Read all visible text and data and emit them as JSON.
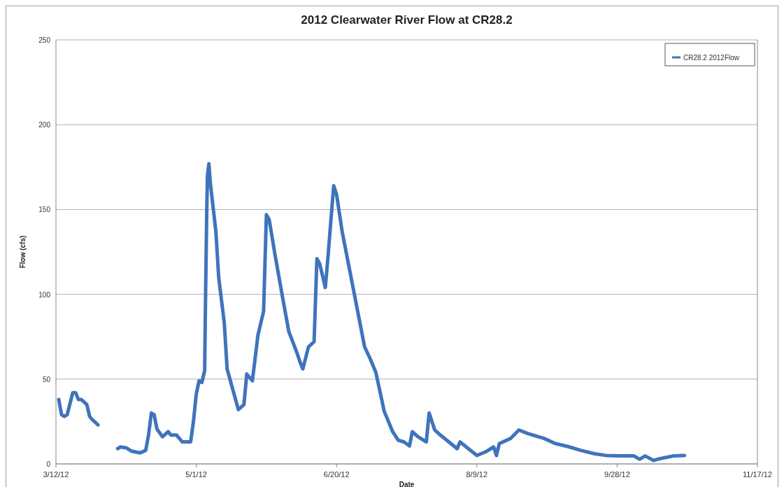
{
  "chart_data": {
    "type": "line",
    "title": "2012 Clearwater River Flow at CR28.2",
    "xlabel": "Date",
    "ylabel": "Flow (cfs)",
    "xlim": [
      "2012-03-12",
      "2012-11-17"
    ],
    "xticks": [
      {
        "value": "2012-03-12",
        "label": "3/12/12"
      },
      {
        "value": "2012-05-01",
        "label": "5/1/12"
      },
      {
        "value": "2012-06-20",
        "label": "6/20/12"
      },
      {
        "value": "2012-08-09",
        "label": "8/9/12"
      },
      {
        "value": "2012-09-28",
        "label": "9/28/12"
      },
      {
        "value": "2012-11-17",
        "label": "11/17/12"
      }
    ],
    "ylim": [
      0,
      250
    ],
    "yticks": [
      0,
      50,
      100,
      150,
      200,
      250
    ],
    "grid": "y",
    "legend": "top right",
    "x": [
      "2012-03-13",
      "2012-03-14",
      "2012-03-15",
      "2012-03-16",
      "2012-03-18",
      "2012-03-19",
      "2012-03-20",
      "2012-03-21",
      "2012-03-23",
      "2012-03-24",
      "2012-03-25",
      "2012-03-27",
      "2012-03-30",
      "2012-04-03",
      "2012-04-04",
      "2012-04-06",
      "2012-04-08",
      "2012-04-11",
      "2012-04-13",
      "2012-04-14",
      "2012-04-15",
      "2012-04-16",
      "2012-04-17",
      "2012-04-19",
      "2012-04-21",
      "2012-04-22",
      "2012-04-24",
      "2012-04-26",
      "2012-04-29",
      "2012-04-30",
      "2012-05-01",
      "2012-05-02",
      "2012-05-03",
      "2012-05-04T00:00",
      "2012-05-04T06:00",
      "2012-05-04T12:00",
      "2012-05-04T18:00",
      "2012-05-05T00:00",
      "2012-05-05T12:00",
      "2012-05-06",
      "2012-05-08",
      "2012-05-09",
      "2012-05-11",
      "2012-05-12",
      "2012-05-16",
      "2012-05-18",
      "2012-05-19",
      "2012-05-21",
      "2012-05-23",
      "2012-05-25",
      "2012-05-26",
      "2012-05-27",
      "2012-05-29",
      "2012-06-01",
      "2012-06-03",
      "2012-06-06",
      "2012-06-07",
      "2012-06-08",
      "2012-06-10",
      "2012-06-12",
      "2012-06-13",
      "2012-06-14",
      "2012-06-16",
      "2012-06-17",
      "2012-06-18",
      "2012-06-19",
      "2012-06-20",
      "2012-06-22",
      "2012-06-26",
      "2012-06-30",
      "2012-07-02",
      "2012-07-04",
      "2012-07-07",
      "2012-07-10",
      "2012-07-12",
      "2012-07-14",
      "2012-07-16",
      "2012-07-17",
      "2012-07-19",
      "2012-07-22",
      "2012-07-23",
      "2012-07-25",
      "2012-07-27",
      "2012-07-30",
      "2012-08-02",
      "2012-08-03",
      "2012-08-06",
      "2012-08-09",
      "2012-08-12",
      "2012-08-15",
      "2012-08-16",
      "2012-08-17",
      "2012-08-21",
      "2012-08-24",
      "2012-08-27",
      "2012-09-02",
      "2012-09-06",
      "2012-09-11",
      "2012-09-15",
      "2012-09-20",
      "2012-09-24",
      "2012-09-29",
      "2012-10-04",
      "2012-10-06",
      "2012-10-08",
      "2012-10-11",
      "2012-10-13",
      "2012-10-18",
      "2012-10-22"
    ],
    "series": [
      {
        "name": "CR28.2 2012Flow",
        "color": "#3f74bb",
        "values": [
          38,
          29,
          28,
          29,
          42,
          42,
          38,
          38,
          35,
          28,
          26,
          23,
          null,
          9,
          10,
          9.5,
          7.5,
          6.5,
          8,
          17,
          30,
          29,
          20.5,
          16,
          19,
          17,
          17,
          13,
          13,
          25,
          41,
          49,
          48,
          55,
          90,
          120,
          150,
          170,
          177,
          166,
          137,
          110,
          83,
          56,
          32,
          35,
          53,
          49,
          76,
          90,
          147,
          144,
          124,
          96,
          78,
          65,
          60,
          56,
          69,
          72,
          121,
          118,
          104,
          123,
          144,
          164,
          159,
          137,
          103,
          69,
          62,
          54,
          31,
          19,
          14,
          13,
          10.6,
          19,
          16,
          13,
          30,
          20,
          17,
          13,
          9,
          13,
          9,
          5,
          7,
          10,
          5,
          12,
          15,
          20,
          18,
          15,
          12,
          10,
          8,
          6,
          5,
          4.7,
          4.7,
          2.7,
          4.7,
          2,
          3,
          4.7,
          5
        ]
      }
    ]
  }
}
